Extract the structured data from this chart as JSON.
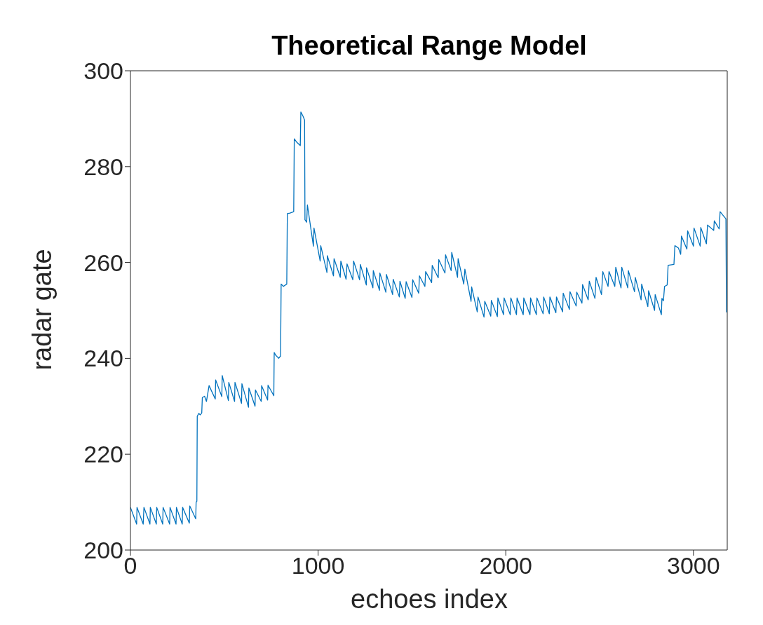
{
  "chart_data": {
    "type": "line",
    "title": "Theoretical Range Model",
    "xlabel": "echoes index",
    "ylabel": "radar gate",
    "color": "#0072bd",
    "xlim": [
      0,
      3180
    ],
    "xticks": [
      0,
      1000,
      2000,
      3000
    ],
    "ylim": [
      200,
      300
    ],
    "yticks": [
      200,
      220,
      240,
      260,
      280,
      300
    ],
    "grid": false,
    "marker": "none",
    "line_style": "solid",
    "x": [
      0,
      33,
      35,
      68,
      72,
      104,
      106,
      138,
      140,
      172,
      174,
      209,
      211,
      243,
      245,
      276,
      278,
      314,
      316,
      348,
      350,
      354,
      356,
      364,
      372,
      380,
      383,
      395,
      405,
      419,
      452,
      454,
      487,
      489,
      522,
      524,
      555,
      557,
      592,
      594,
      629,
      631,
      664,
      666,
      697,
      699,
      731,
      733,
      764,
      766,
      775,
      790,
      800,
      803,
      815,
      833,
      836,
      850,
      870,
      873,
      888,
      905,
      908,
      920,
      928,
      930,
      939,
      943,
      975,
      978,
      1011,
      1014,
      1047,
      1049,
      1082,
      1085,
      1118,
      1121,
      1149,
      1154,
      1185,
      1189,
      1221,
      1225,
      1257,
      1258,
      1292,
      1294,
      1327,
      1329,
      1361,
      1364,
      1397,
      1400,
      1433,
      1436,
      1464,
      1469,
      1500,
      1504,
      1536,
      1540,
      1569,
      1573,
      1605,
      1608,
      1640,
      1643,
      1676,
      1679,
      1709,
      1712,
      1743,
      1746,
      1776,
      1782,
      1815,
      1818,
      1848,
      1852,
      1884,
      1888,
      1920,
      1923,
      1955,
      1958,
      1988,
      1991,
      2024,
      2027,
      2057,
      2060,
      2093,
      2096,
      2129,
      2132,
      2163,
      2166,
      2199,
      2202,
      2232,
      2235,
      2267,
      2270,
      2303,
      2306,
      2339,
      2342,
      2375,
      2378,
      2406,
      2409,
      2439,
      2445,
      2475,
      2481,
      2510,
      2517,
      2545,
      2550,
      2581,
      2586,
      2614,
      2618,
      2650,
      2653,
      2686,
      2690,
      2721,
      2724,
      2757,
      2761,
      2793,
      2796,
      2829,
      2832,
      2840,
      2846,
      2860,
      2865,
      2896,
      2901,
      2920,
      2932,
      2936,
      2965,
      2969,
      3000,
      3003,
      3036,
      3039,
      3069,
      3075,
      3108,
      3111,
      3137,
      3142,
      3173,
      3176
    ],
    "values": [
      208.9,
      205.4,
      208.9,
      205.4,
      208.9,
      205.4,
      208.9,
      205.4,
      208.9,
      205.4,
      208.9,
      205.4,
      208.9,
      205.4,
      208.9,
      205.4,
      208.9,
      205.6,
      209.2,
      206.5,
      210,
      210.2,
      227.9,
      228.5,
      228.2,
      228.6,
      231.8,
      232.1,
      231,
      234.3,
      231.5,
      235.5,
      232,
      236.4,
      231.2,
      235,
      231,
      235,
      230.6,
      234.7,
      229.8,
      233.8,
      230,
      233.4,
      231,
      234.3,
      231.3,
      234.4,
      232.2,
      241.2,
      240.6,
      240,
      240.5,
      255.5,
      255,
      255.5,
      270.2,
      270.3,
      270.6,
      285.8,
      285,
      284.4,
      291.4,
      290.5,
      289.7,
      268.9,
      268.4,
      272,
      263.4,
      267.2,
      260.3,
      263.5,
      257.9,
      261.4,
      257.2,
      260.8,
      256.9,
      260.3,
      256.5,
      259.7,
      256.4,
      260.3,
      256.4,
      259.6,
      255.3,
      258.9,
      254.7,
      258.3,
      254.2,
      257.8,
      253.8,
      257.5,
      253.3,
      256.5,
      252.8,
      256.1,
      252.5,
      256,
      252.7,
      256.4,
      253.6,
      257.2,
      255,
      258.1,
      255.8,
      259.4,
      256.8,
      260.6,
      257.8,
      261.6,
      258.3,
      262.1,
      256.9,
      260.8,
      255.5,
      258.6,
      251.9,
      254.9,
      249.7,
      252.8,
      248.6,
      251.9,
      248.8,
      252.1,
      248.7,
      252.6,
      249.1,
      252.6,
      249.1,
      252.6,
      249.1,
      252.6,
      249.1,
      252.6,
      249.1,
      252.6,
      249.1,
      252.6,
      249.3,
      252.8,
      249.3,
      252.8,
      249.5,
      252.8,
      249.7,
      253.6,
      250.2,
      253.9,
      250.9,
      253.8,
      251.5,
      255.4,
      252.2,
      256.1,
      252.5,
      256.9,
      253.3,
      258.1,
      255,
      258.1,
      255,
      259,
      254.7,
      259,
      254.7,
      258.3,
      253.9,
      256.9,
      252.2,
      255.5,
      250.8,
      254.1,
      250,
      253.3,
      249.1,
      252.5,
      252,
      255,
      255.3,
      259.4,
      259.6,
      263.5,
      263,
      261.7,
      265.5,
      262.8,
      266.6,
      263.4,
      267.2,
      263.4,
      267.3,
      263.9,
      267.8,
      266.7,
      268.7,
      267,
      270.6,
      269.1,
      249.6
    ]
  }
}
